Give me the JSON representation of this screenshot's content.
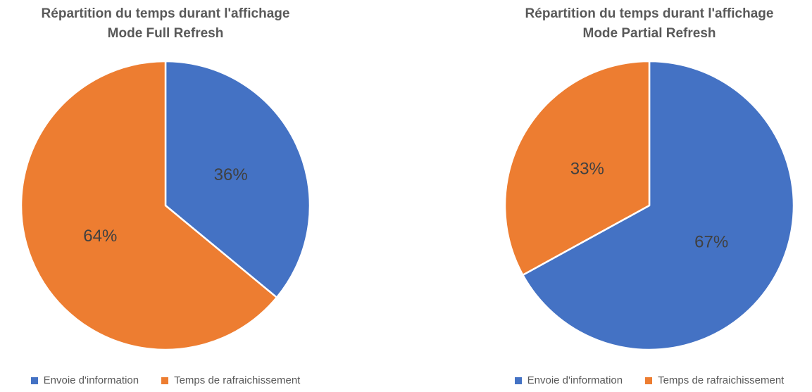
{
  "colors": {
    "series_blue": "#4472C4",
    "series_orange": "#ED7D31",
    "title_text": "#595959",
    "data_label_text": "#404040",
    "legend_text": "#595959",
    "slice_border": "#FFFFFF",
    "background": "#FFFFFF"
  },
  "chart_data": [
    {
      "type": "pie",
      "title": "Répartition du temps durant l'affichage Mode Full Refresh",
      "title_lines": [
        "Répartition du temps durant l'affichage",
        "Mode Full Refresh"
      ],
      "labels": [
        "Envoie d'information",
        "Temps de rafraichissement"
      ],
      "values": [
        36,
        64
      ],
      "value_labels": [
        "36%",
        "64%"
      ],
      "colors": [
        "#4472C4",
        "#ED7D31"
      ],
      "start_angle_deg": 0,
      "direction": "clockwise",
      "legend_position": "bottom",
      "grid": false
    },
    {
      "type": "pie",
      "title": "Répartition du temps durant l'affichage Mode Partial Refresh",
      "title_lines": [
        "Répartition du temps durant l'affichage",
        "Mode Partial Refresh"
      ],
      "labels": [
        "Envoie d'information",
        "Temps de rafraichissement"
      ],
      "values": [
        67,
        33
      ],
      "value_labels": [
        "67%",
        "33%"
      ],
      "colors": [
        "#4472C4",
        "#ED7D31"
      ],
      "start_angle_deg": 0,
      "direction": "clockwise",
      "legend_position": "bottom",
      "grid": false
    }
  ]
}
